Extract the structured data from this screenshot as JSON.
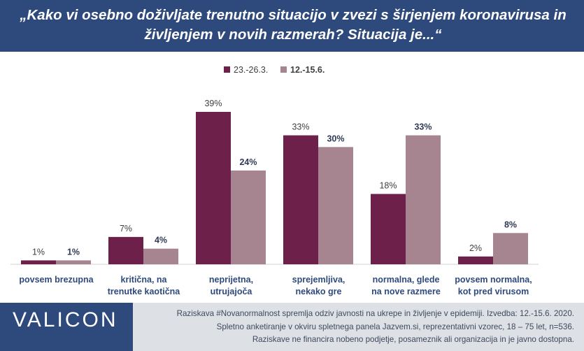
{
  "header": {
    "title": "„Kako vi osebno doživljate trenutno situacijo v zvezi s širjenjem koronavirusa in življenjem v novih razmerah? Situacija je...“"
  },
  "chart_data": {
    "type": "bar",
    "legend_position": "top-center",
    "categories": [
      [
        "povsem brezupna"
      ],
      [
        "kritična, na",
        "trenutke kaotična"
      ],
      [
        "neprijetna,",
        "utrujajoča"
      ],
      [
        "sprejemljiva,",
        "nekako gre"
      ],
      [
        "normalna, glede",
        "na nove razmere"
      ],
      [
        "povsem normalna,",
        "kot pred virusom"
      ]
    ],
    "series": [
      {
        "name": "23.-26.3.",
        "color": "#6d2049",
        "values": [
          1,
          7,
          39,
          33,
          18,
          2
        ],
        "labels": [
          "1%",
          "7%",
          "39%",
          "33%",
          "18%",
          "2%"
        ]
      },
      {
        "name": "12.-15.6.",
        "color": "#a68590",
        "values": [
          1,
          4,
          24,
          30,
          33,
          8
        ],
        "labels": [
          "1%",
          "4%",
          "24%",
          "30%",
          "33%",
          "8%"
        ]
      }
    ],
    "ylim": [
      0,
      39
    ],
    "grid": false
  },
  "footer": {
    "logo": "VALICON",
    "lines": [
      "Raziskava #Novanormalnost spremlja odziv javnosti na ukrepe in življenje v epidemiji. Izvedba: 12.-15.6. 2020.",
      "Spletno anketiranje v okviru spletnega panela Jazvem.si, reprezentativni vzorec, 18 – 75 let, n=536.",
      "Raziskave ne financira nobeno podjetje, posameznik ali organizacija in je javno dostopna."
    ]
  },
  "colors": {
    "header_bg": "#2e4a7d",
    "category_label": "#2e4a7d",
    "footer_bg": "#dde0e5"
  }
}
